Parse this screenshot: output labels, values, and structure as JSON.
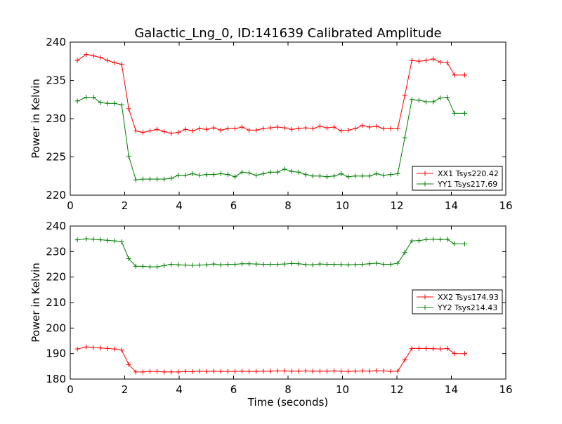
{
  "title": "Galactic_Lng_0, ID:141639 Calibrated Amplitude",
  "chart_data": [
    {
      "type": "line",
      "ylabel": "Power in Kelvin",
      "xlabel": "",
      "xlim": [
        0,
        16
      ],
      "ylim": [
        220,
        240
      ],
      "xticks": [
        0,
        2,
        4,
        6,
        8,
        10,
        12,
        14,
        16
      ],
      "yticks": [
        220,
        225,
        230,
        235,
        240
      ],
      "x": [
        0.26,
        0.59,
        0.85,
        1.11,
        1.37,
        1.63,
        1.89,
        2.15,
        2.41,
        2.67,
        2.93,
        3.19,
        3.45,
        3.71,
        3.97,
        4.23,
        4.49,
        4.75,
        5.01,
        5.27,
        5.53,
        5.79,
        6.05,
        6.31,
        6.57,
        6.83,
        7.09,
        7.35,
        7.61,
        7.87,
        8.13,
        8.39,
        8.65,
        8.91,
        9.17,
        9.43,
        9.69,
        9.95,
        10.21,
        10.47,
        10.73,
        10.99,
        11.25,
        11.51,
        11.77,
        12.03,
        12.29,
        12.55,
        12.81,
        13.07,
        13.33,
        13.59,
        13.85,
        14.11,
        14.49
      ],
      "series": [
        {
          "name": "XX1 Tsys220.42",
          "color": "#ff0000",
          "values": [
            237.6,
            238.4,
            238.2,
            238.0,
            237.6,
            237.3,
            237.1,
            231.3,
            228.4,
            228.2,
            228.4,
            228.6,
            228.3,
            228.1,
            228.2,
            228.6,
            228.4,
            228.7,
            228.6,
            228.8,
            228.5,
            228.7,
            228.7,
            228.9,
            228.5,
            228.5,
            228.7,
            228.8,
            228.9,
            228.8,
            228.6,
            228.7,
            228.8,
            228.7,
            229.0,
            228.8,
            228.9,
            228.4,
            228.5,
            228.7,
            229.1,
            228.9,
            229.0,
            228.7,
            228.7,
            228.7,
            233.0,
            237.6,
            237.5,
            237.6,
            237.8,
            237.4,
            237.3,
            235.7,
            235.7
          ]
        },
        {
          "name": "YY1 Tsys217.69",
          "color": "#008000",
          "values": [
            232.3,
            232.8,
            232.8,
            232.1,
            232.0,
            232.0,
            231.8,
            225.1,
            222.0,
            222.1,
            222.1,
            222.1,
            222.1,
            222.2,
            222.6,
            222.6,
            222.8,
            222.6,
            222.7,
            222.7,
            222.8,
            222.7,
            222.4,
            223.0,
            222.9,
            222.6,
            222.8,
            223.0,
            223.0,
            223.4,
            223.1,
            223.0,
            222.7,
            222.5,
            222.5,
            222.4,
            222.5,
            222.8,
            222.4,
            222.5,
            222.5,
            222.5,
            222.8,
            222.6,
            222.7,
            222.8,
            227.5,
            232.5,
            232.4,
            232.2,
            232.2,
            232.7,
            232.8,
            230.7,
            230.7
          ]
        }
      ]
    },
    {
      "type": "line",
      "ylabel": "Power in Kelvin",
      "xlabel": "Time (seconds)",
      "xlim": [
        0,
        16
      ],
      "ylim": [
        180,
        240
      ],
      "xticks": [
        0,
        2,
        4,
        6,
        8,
        10,
        12,
        14,
        16
      ],
      "yticks": [
        180,
        190,
        200,
        210,
        220,
        230,
        240
      ],
      "x": [
        0.26,
        0.59,
        0.85,
        1.11,
        1.37,
        1.63,
        1.89,
        2.15,
        2.41,
        2.67,
        2.93,
        3.19,
        3.45,
        3.71,
        3.97,
        4.23,
        4.49,
        4.75,
        5.01,
        5.27,
        5.53,
        5.79,
        6.05,
        6.31,
        6.57,
        6.83,
        7.09,
        7.35,
        7.61,
        7.87,
        8.13,
        8.39,
        8.65,
        8.91,
        9.17,
        9.43,
        9.69,
        9.95,
        10.21,
        10.47,
        10.73,
        10.99,
        11.25,
        11.51,
        11.77,
        12.03,
        12.29,
        12.55,
        12.81,
        13.07,
        13.33,
        13.59,
        13.85,
        14.11,
        14.49
      ],
      "series": [
        {
          "name": "XX2 Tsys174.93",
          "color": "#ff0000",
          "values": [
            191.8,
            192.6,
            192.4,
            192.2,
            192.0,
            191.8,
            191.4,
            185.7,
            182.8,
            182.8,
            183.0,
            183.0,
            182.8,
            182.8,
            182.8,
            183.0,
            182.9,
            183.1,
            183.0,
            183.1,
            183.0,
            183.0,
            183.0,
            183.1,
            183.0,
            183.0,
            183.1,
            183.1,
            183.2,
            183.2,
            183.1,
            183.1,
            183.2,
            183.1,
            183.1,
            183.1,
            183.2,
            183.1,
            183.0,
            183.1,
            183.2,
            183.1,
            183.3,
            183.2,
            183.0,
            183.1,
            187.5,
            192.0,
            192.0,
            192.0,
            191.9,
            191.8,
            192.0,
            190.0,
            190.0
          ]
        },
        {
          "name": "YY2 Tsys214.43",
          "color": "#008000",
          "values": [
            234.6,
            235.0,
            234.8,
            234.6,
            234.4,
            234.2,
            233.8,
            227.2,
            224.2,
            224.2,
            224.0,
            224.0,
            224.5,
            225.0,
            224.8,
            224.7,
            224.6,
            224.7,
            224.8,
            225.1,
            224.8,
            225.0,
            225.0,
            225.2,
            225.2,
            225.1,
            225.0,
            225.0,
            225.0,
            225.1,
            225.3,
            225.2,
            224.9,
            224.8,
            225.1,
            225.0,
            225.0,
            224.9,
            224.8,
            224.9,
            225.0,
            225.2,
            225.4,
            225.0,
            225.0,
            225.4,
            229.6,
            234.2,
            234.3,
            234.7,
            234.8,
            234.7,
            234.8,
            233.0,
            233.0
          ]
        }
      ]
    }
  ]
}
